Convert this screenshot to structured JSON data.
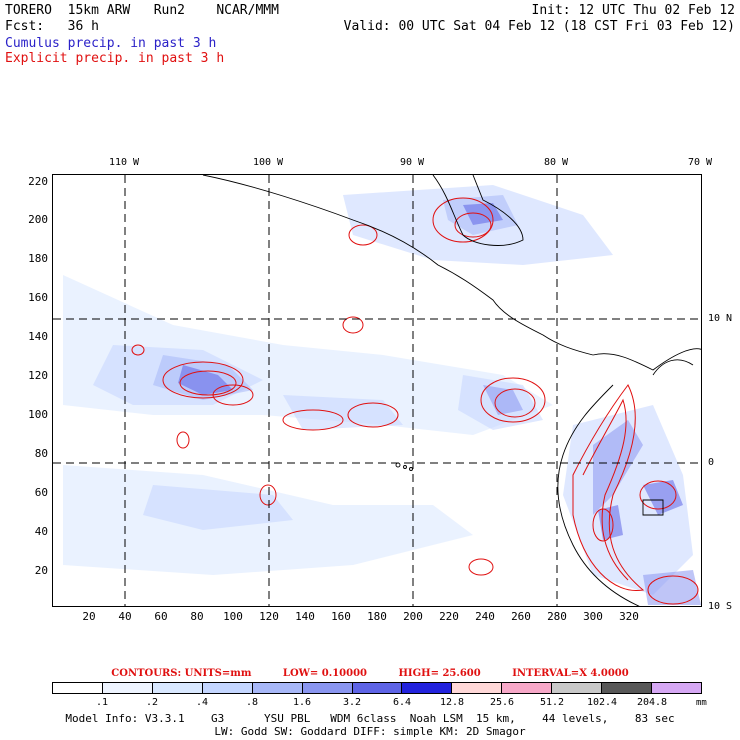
{
  "header": {
    "model": "TORERO  15km ARW   Run2    NCAR/MMM",
    "init": "Init: 12 UTC Thu 02 Feb 12",
    "fcst": "Fcst:   36 h",
    "valid": "Valid: 00 UTC Sat 04 Feb 12 (18 CST Fri 03 Feb 12)",
    "cumulus": "Cumulus precip. in past 3 h",
    "explicit": "Explicit precip. in past 3 h"
  },
  "map": {
    "lon_labels": [
      "110 W",
      "100 W",
      "90 W",
      "80 W",
      "70 W"
    ],
    "lat_labels": [
      "10 N",
      "0",
      "10 S"
    ],
    "x_ticks": [
      "20",
      "40",
      "60",
      "80",
      "100",
      "120",
      "140",
      "160",
      "180",
      "200",
      "220",
      "240",
      "260",
      "280",
      "300",
      "320"
    ],
    "y_ticks": [
      "220",
      "200",
      "180",
      "160",
      "140",
      "120",
      "100",
      "80",
      "60",
      "40",
      "20"
    ],
    "cumulus_color": "#4a4ae0",
    "explicit_color": "#e01010"
  },
  "contours": {
    "title": "CONTOURS:  UNITS=mm",
    "low": "LOW= 0.10000",
    "high": "HIGH=  25.600",
    "interval": "INTERVAL=X  4.0000"
  },
  "colorbar": {
    "colors": [
      "#ffffff",
      "#eef4ff",
      "#d9e8ff",
      "#c4d6ff",
      "#a8b8f8",
      "#8a96f0",
      "#5e64e6",
      "#2222dd",
      "#ffd8d8",
      "#f7a8c8",
      "#c8c8c8",
      "#585858",
      "#d6a8f4"
    ],
    "labels": [
      ".1",
      ".2",
      ".4",
      ".8",
      "1.6",
      "3.2",
      "6.4",
      "12.8",
      "25.6",
      "51.2",
      "102.4",
      "204.8"
    ],
    "unit": "mm"
  },
  "footer": {
    "line1": "Model Info: V3.3.1    G3      YSU PBL   WDM 6class  Noah LSM  15 km,    44 levels,    83 sec",
    "line2": "LW: Godd SW: Goddard DIFF: simple KM: 2D Smagor"
  }
}
